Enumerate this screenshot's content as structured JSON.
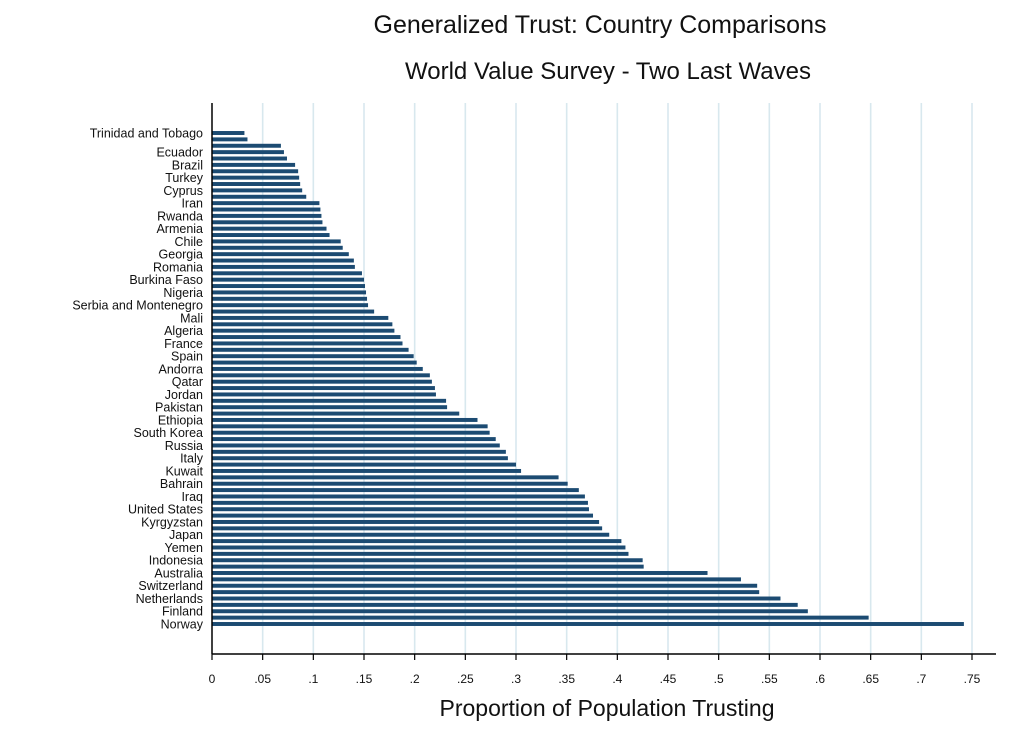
{
  "chart_data": {
    "type": "bar",
    "orientation": "horizontal",
    "title": "Generalized Trust: Country Comparisons",
    "subtitle": "World Value Survey - Two Last Waves",
    "xlabel": "Proportion of Population Trusting",
    "ylabel": "",
    "xlim": [
      0,
      0.77
    ],
    "xticks": [
      "0",
      ".05",
      ".1",
      ".15",
      ".2",
      ".25",
      ".3",
      ".35",
      ".4",
      ".45",
      ".5",
      ".55",
      ".6",
      ".65",
      ".7",
      ".75"
    ],
    "grid": "vertical",
    "colors": {
      "bar": "#1c4b72",
      "grid": "#d8e8ee",
      "axis": "#000000",
      "background": "#ffffff"
    },
    "categories": [
      "Trinidad and Tobago",
      "",
      "",
      "Ecuador",
      "",
      "Brazil",
      "",
      "Turkey",
      "",
      "Cyprus",
      "",
      "Iran",
      "",
      "Rwanda",
      "",
      "Armenia",
      "",
      "Chile",
      "",
      "Georgia",
      "",
      "Romania",
      "",
      "Burkina Faso",
      "",
      "Nigeria",
      "",
      "Serbia and Montenegro",
      "",
      "Mali",
      "",
      "Algeria",
      "",
      "France",
      "",
      "Spain",
      "",
      "Andorra",
      "",
      "Qatar",
      "",
      "Jordan",
      "",
      "Pakistan",
      "",
      "Ethiopia",
      "",
      "South Korea",
      "",
      "Russia",
      "",
      "Italy",
      "",
      "Kuwait",
      "",
      "Bahrain",
      "",
      "Iraq",
      "",
      "United States",
      "",
      "Kyrgyzstan",
      "",
      "Japan",
      "",
      "Yemen",
      "",
      "Indonesia",
      "",
      "Australia",
      "",
      "Switzerland",
      "",
      "Netherlands",
      "",
      "Finland",
      "",
      "Norway"
    ],
    "values": [
      0.032,
      0.035,
      0.068,
      0.071,
      0.074,
      0.082,
      0.085,
      0.086,
      0.087,
      0.089,
      0.093,
      0.106,
      0.107,
      0.108,
      0.109,
      0.113,
      0.116,
      0.127,
      0.129,
      0.135,
      0.14,
      0.141,
      0.148,
      0.15,
      0.151,
      0.152,
      0.153,
      0.154,
      0.16,
      0.174,
      0.178,
      0.18,
      0.186,
      0.188,
      0.194,
      0.199,
      0.202,
      0.208,
      0.215,
      0.217,
      0.22,
      0.221,
      0.231,
      0.232,
      0.244,
      0.262,
      0.272,
      0.274,
      0.28,
      0.284,
      0.29,
      0.292,
      0.3,
      0.305,
      0.342,
      0.351,
      0.362,
      0.368,
      0.371,
      0.372,
      0.376,
      0.382,
      0.385,
      0.392,
      0.404,
      0.408,
      0.411,
      0.425,
      0.426,
      0.489,
      0.522,
      0.538,
      0.54,
      0.561,
      0.578,
      0.588,
      0.648,
      0.742
    ]
  }
}
